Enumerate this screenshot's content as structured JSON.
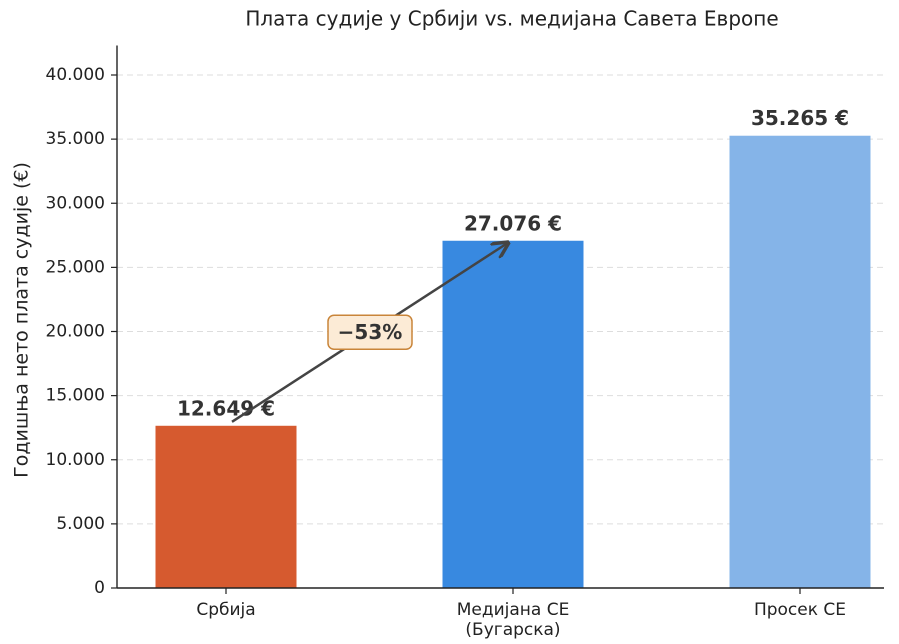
{
  "chart_data": {
    "type": "bar",
    "title": "Плата судије у Србији vs. медијана Савета Европе",
    "ylabel": "Годишња нето плата судије (€)",
    "categories": [
      "Србија",
      "Медијана CE\n(Бугарска)",
      "Просек CE"
    ],
    "values": [
      12649,
      27076,
      35265
    ],
    "value_labels": [
      "12.649 €",
      "27.076 €",
      "35.265 €"
    ],
    "colors": [
      "#d65a2f",
      "#3889e0",
      "#85b4e8"
    ],
    "ylim": [
      0,
      42300
    ],
    "yticks": [
      0,
      {
        "value": 5000,
        "label": "5.000"
      },
      {
        "value": 10000,
        "label": "10.000"
      },
      {
        "value": 15000,
        "label": "15.000"
      },
      {
        "value": 20000,
        "label": "20.000"
      },
      {
        "value": 25000,
        "label": "25.000"
      },
      {
        "value": 30000,
        "label": "30.000"
      },
      {
        "value": 35000,
        "label": "35.000"
      },
      {
        "value": 40000,
        "label": "40.000"
      }
    ],
    "grid": true,
    "annotation": "−53%"
  }
}
